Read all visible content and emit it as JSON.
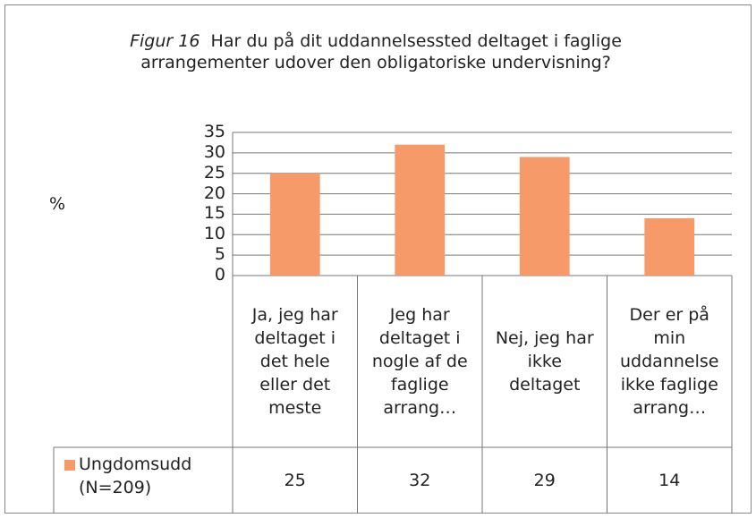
{
  "chart_data": {
    "type": "bar",
    "figure_label": "Figur 16",
    "title": "Har du på dit uddannelsessted deltaget i faglige arrangementer udover den obligatoriske undervisning?",
    "ylabel": "%",
    "categories": [
      "Ja, jeg har deltaget i det hele eller det meste",
      "Jeg har deltaget i nogle af de faglige arrang…",
      "Nej, jeg har ikke deltaget",
      "Der er på min uddannelse ikke faglige arrang…"
    ],
    "series": [
      {
        "name": "Ungdomsudd (N=209)",
        "color": "#f79a6a",
        "values": [
          25,
          32,
          29,
          14
        ]
      }
    ],
    "ylim": [
      0,
      35
    ],
    "yticks": [
      0,
      5,
      10,
      15,
      20,
      25,
      30,
      35
    ],
    "grid": true
  }
}
